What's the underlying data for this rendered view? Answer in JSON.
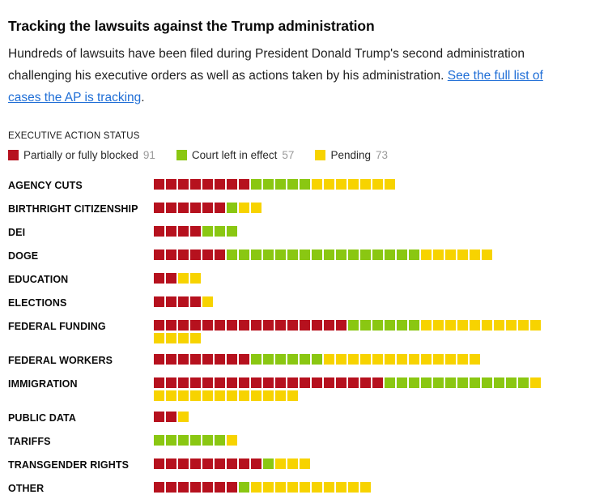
{
  "header": {
    "title": "Tracking the lawsuits against the Trump administration",
    "description_before_link": "Hundreds of lawsuits have been filed during President Donald Trump's second administration challenging his executive orders as well as actions taken by his administration. ",
    "link_text": "See the full list of cases the AP is tracking",
    "description_after_link": "."
  },
  "legend": {
    "title": "EXECUTIVE ACTION STATUS",
    "items": [
      {
        "label": "Partially or fully blocked",
        "count": "91",
        "color": "#b6111e",
        "key": "blocked"
      },
      {
        "label": "Court left in effect",
        "count": "57",
        "color": "#8ac712",
        "key": "left-in-effect"
      },
      {
        "label": "Pending",
        "count": "73",
        "color": "#f7d300",
        "key": "pending"
      }
    ]
  },
  "chart_data": {
    "type": "waffle-bar",
    "unit": "one square = one lawsuit",
    "legend_position": "top",
    "categories": [
      "AGENCY CUTS",
      "BIRTHRIGHT CITIZENSHIP",
      "DEI",
      "DOGE",
      "EDUCATION",
      "ELECTIONS",
      "FEDERAL FUNDING",
      "FEDERAL WORKERS",
      "IMMIGRATION",
      "PUBLIC DATA",
      "TARIFFS",
      "TRANSGENDER RIGHTS",
      "OTHER"
    ],
    "series": [
      {
        "name": "Partially or fully blocked",
        "total": 91,
        "color": "#b6111e",
        "values": [
          8,
          6,
          4,
          6,
          2,
          4,
          16,
          8,
          19,
          2,
          0,
          9,
          7
        ]
      },
      {
        "name": "Court left in effect",
        "total": 57,
        "color": "#8ac712",
        "values": [
          5,
          1,
          3,
          16,
          0,
          0,
          6,
          6,
          12,
          0,
          6,
          1,
          1
        ]
      },
      {
        "name": "Pending",
        "total": 73,
        "color": "#f7d300",
        "values": [
          7,
          2,
          0,
          6,
          2,
          1,
          14,
          13,
          13,
          1,
          1,
          3,
          10
        ]
      }
    ]
  }
}
